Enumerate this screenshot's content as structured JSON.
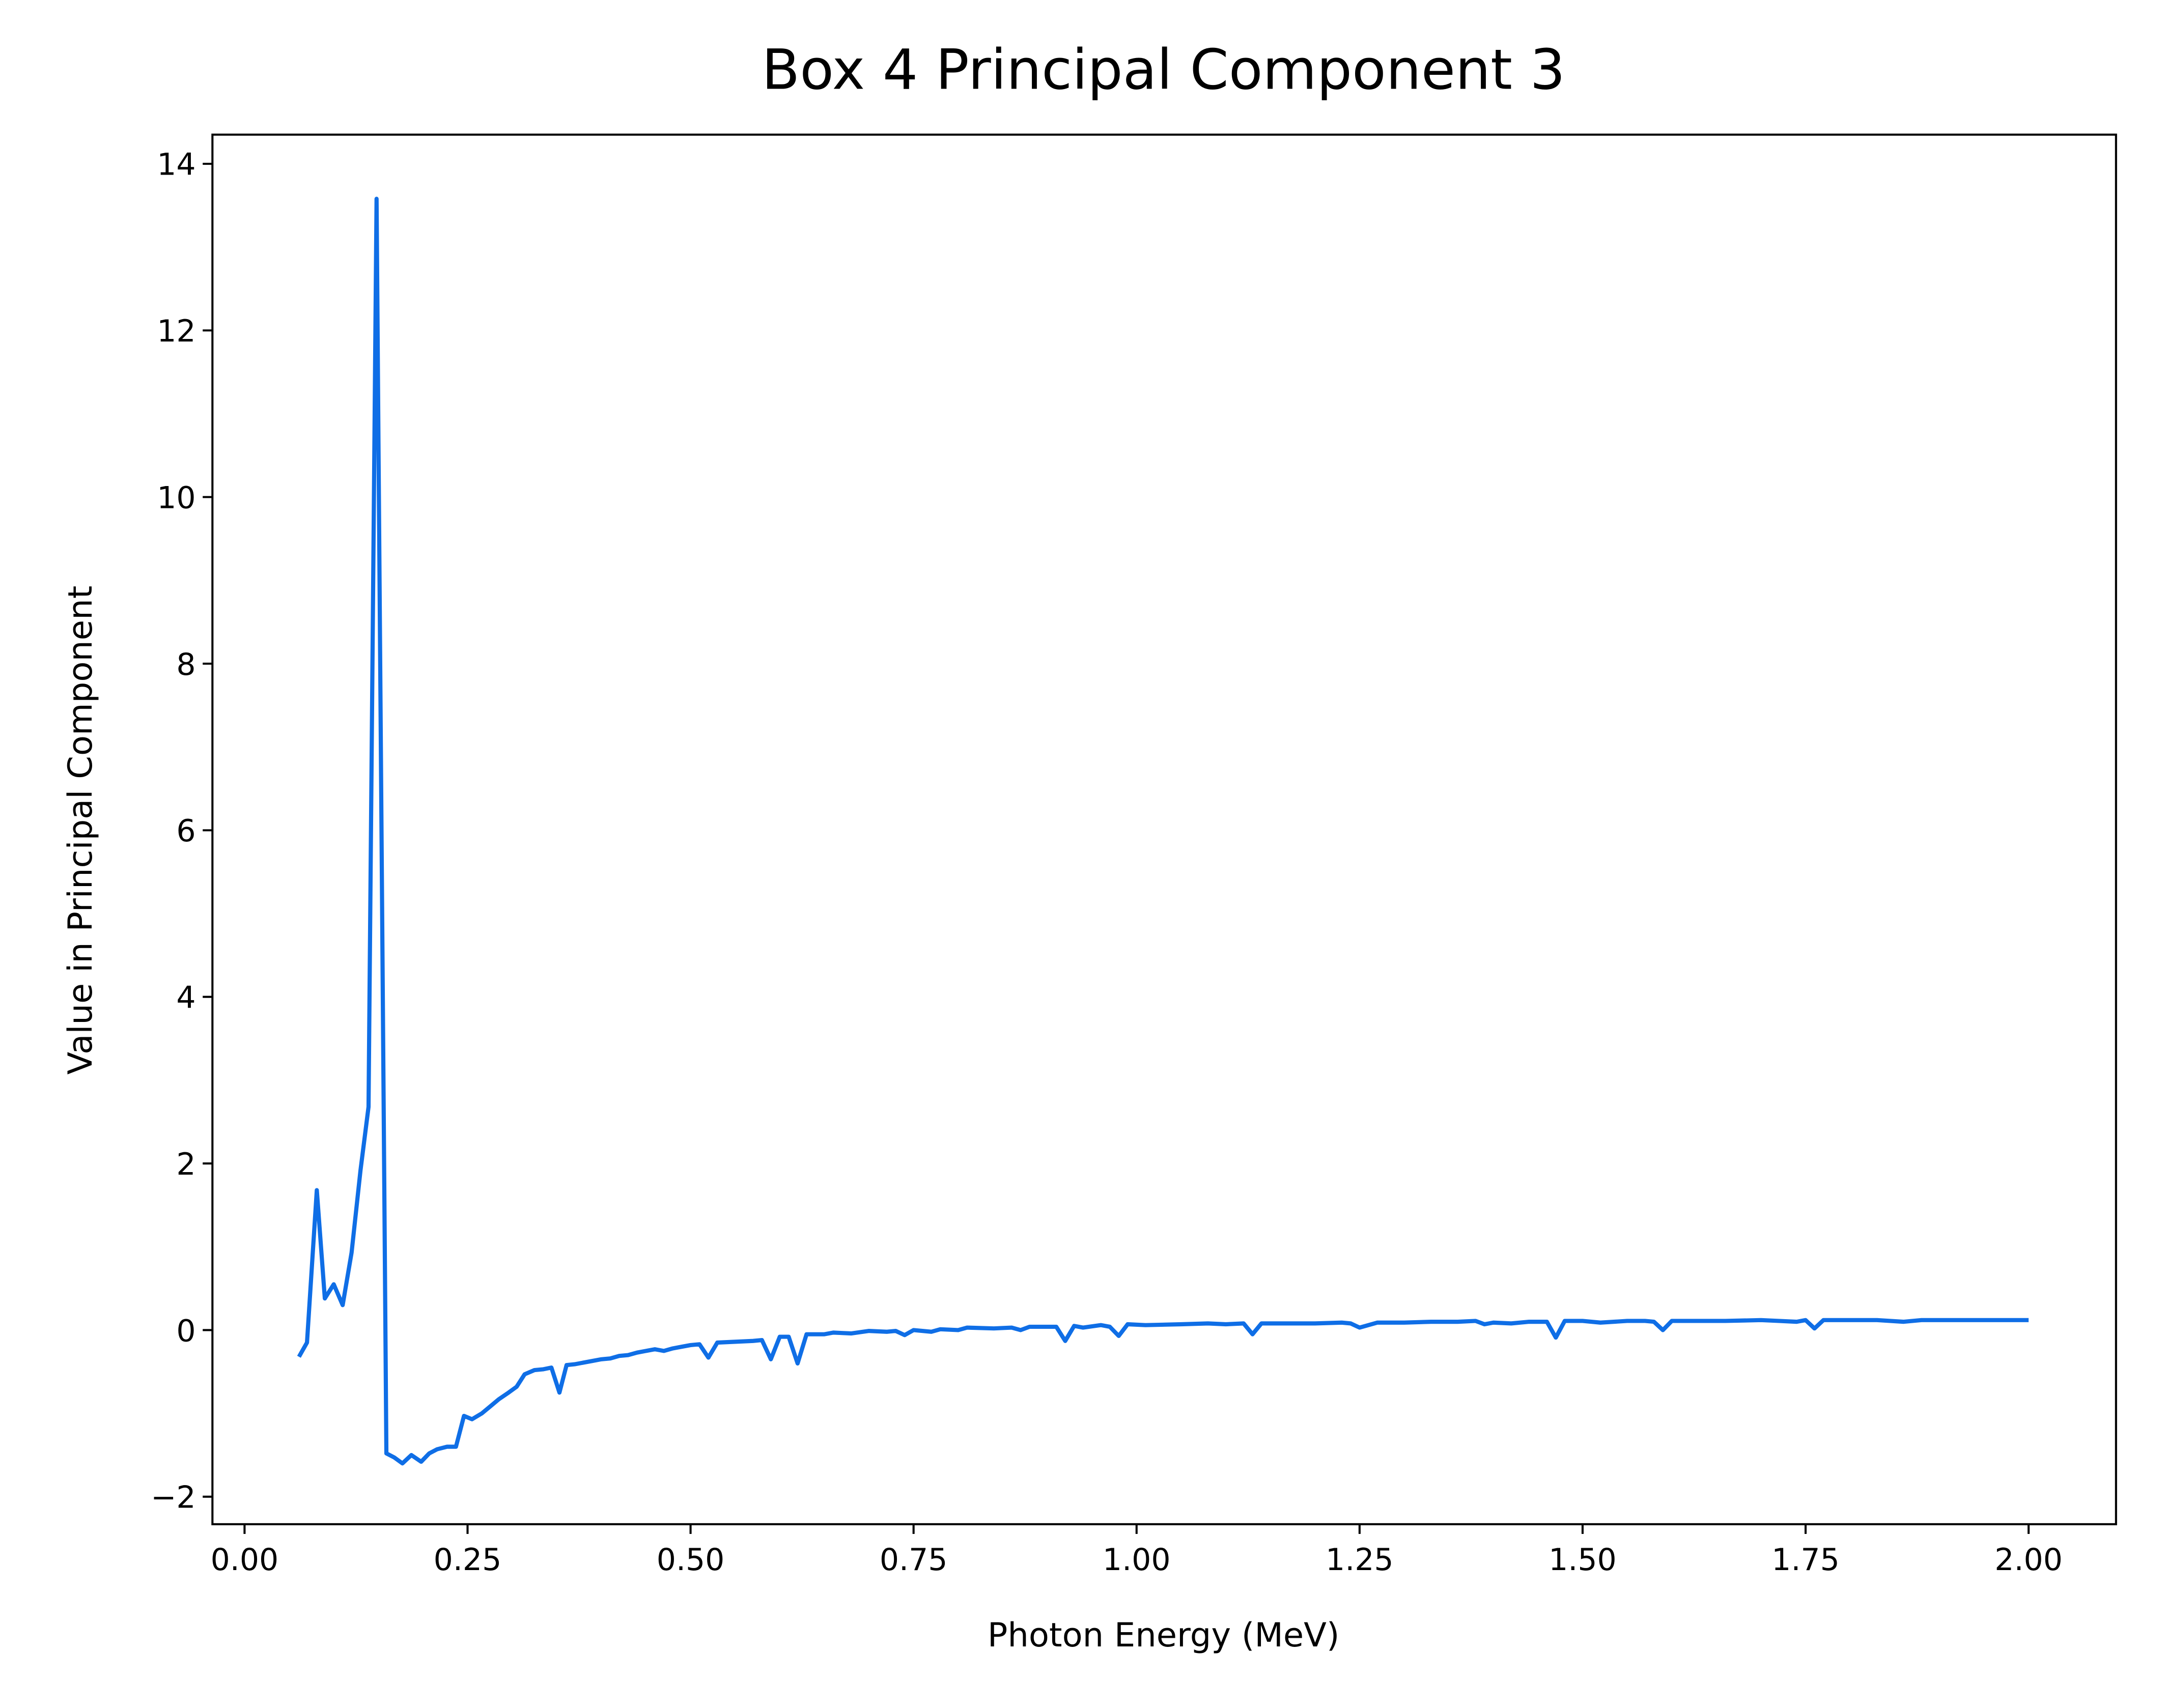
{
  "chart_data": {
    "type": "line",
    "title": "Box 4 Principal Component 3",
    "x_label": "Photon Energy (MeV)",
    "y_label": "Value in Principal Component",
    "x": [
      0.061,
      0.07,
      0.081,
      0.09,
      0.1,
      0.11,
      0.12,
      0.13,
      0.139,
      0.148,
      0.159,
      0.168,
      0.177,
      0.187,
      0.198,
      0.207,
      0.216,
      0.227,
      0.237,
      0.246,
      0.255,
      0.266,
      0.275,
      0.285,
      0.296,
      0.305,
      0.314,
      0.325,
      0.335,
      0.344,
      0.353,
      0.361,
      0.37,
      0.38,
      0.39,
      0.4,
      0.41,
      0.42,
      0.43,
      0.44,
      0.45,
      0.46,
      0.47,
      0.48,
      0.49,
      0.5,
      0.51,
      0.52,
      0.53,
      0.55,
      0.57,
      0.58,
      0.59,
      0.6,
      0.61,
      0.62,
      0.63,
      0.65,
      0.66,
      0.68,
      0.7,
      0.72,
      0.73,
      0.74,
      0.75,
      0.77,
      0.78,
      0.8,
      0.81,
      0.84,
      0.86,
      0.87,
      0.88,
      0.91,
      0.92,
      0.93,
      0.94,
      0.96,
      0.97,
      0.98,
      0.99,
      1.01,
      1.05,
      1.08,
      1.1,
      1.12,
      1.13,
      1.14,
      1.17,
      1.2,
      1.23,
      1.24,
      1.25,
      1.27,
      1.3,
      1.33,
      1.36,
      1.38,
      1.39,
      1.4,
      1.42,
      1.44,
      1.46,
      1.47,
      1.48,
      1.5,
      1.52,
      1.55,
      1.57,
      1.58,
      1.59,
      1.6,
      1.63,
      1.66,
      1.7,
      1.72,
      1.74,
      1.75,
      1.76,
      1.77,
      1.8,
      1.83,
      1.86,
      1.88,
      1.92,
      1.95,
      2.0
    ],
    "series": [
      {
        "name": "Box 4 Principal Component 3",
        "color": "#0f6ee6",
        "values": [
          -0.32,
          -0.15,
          1.68,
          0.38,
          0.55,
          0.3,
          0.93,
          1.92,
          2.68,
          13.58,
          -1.48,
          -1.53,
          -1.6,
          -1.5,
          -1.58,
          -1.48,
          -1.43,
          -1.4,
          -1.4,
          -1.03,
          -1.07,
          -1.0,
          -0.92,
          -0.83,
          -0.75,
          -0.68,
          -0.53,
          -0.48,
          -0.47,
          -0.45,
          -0.75,
          -0.42,
          -0.41,
          -0.39,
          -0.37,
          -0.35,
          -0.34,
          -0.31,
          -0.3,
          -0.27,
          -0.25,
          -0.23,
          -0.25,
          -0.22,
          -0.2,
          -0.18,
          -0.17,
          -0.33,
          -0.15,
          -0.14,
          -0.13,
          -0.12,
          -0.35,
          -0.08,
          -0.08,
          -0.4,
          -0.05,
          -0.05,
          -0.03,
          -0.04,
          -0.01,
          -0.02,
          -0.01,
          -0.06,
          0.0,
          -0.02,
          0.01,
          0.0,
          0.03,
          0.02,
          0.03,
          0.0,
          0.04,
          0.04,
          -0.13,
          0.05,
          0.03,
          0.06,
          0.04,
          -0.07,
          0.07,
          0.06,
          0.07,
          0.08,
          0.07,
          0.08,
          -0.05,
          0.08,
          0.08,
          0.08,
          0.09,
          0.08,
          0.03,
          0.09,
          0.09,
          0.1,
          0.1,
          0.11,
          0.07,
          0.09,
          0.08,
          0.1,
          0.1,
          -0.09,
          0.11,
          0.11,
          0.09,
          0.11,
          0.11,
          0.1,
          0.0,
          0.11,
          0.11,
          0.11,
          0.12,
          0.11,
          0.1,
          0.12,
          0.02,
          0.12,
          0.12,
          0.12,
          0.1,
          0.12,
          0.12,
          0.12,
          0.12
        ]
      }
    ],
    "xlim": [
      -0.036,
      2.098
    ],
    "ylim": [
      -2.33,
      14.35
    ],
    "xticks": [
      {
        "value": 0,
        "label": "0.00"
      },
      {
        "value": 0.25,
        "label": "0.25"
      },
      {
        "value": 0.5,
        "label": "0.50"
      },
      {
        "value": 0.75,
        "label": "0.75"
      },
      {
        "value": 1,
        "label": "1.00"
      },
      {
        "value": 1.25,
        "label": "1.25"
      },
      {
        "value": 1.5,
        "label": "1.50"
      },
      {
        "value": 1.75,
        "label": "1.75"
      },
      {
        "value": 2,
        "label": "2.00"
      }
    ],
    "yticks": [
      {
        "value": -2,
        "label": "−2"
      },
      0,
      2,
      4,
      6,
      8,
      10,
      12,
      14
    ],
    "grid": false
  }
}
